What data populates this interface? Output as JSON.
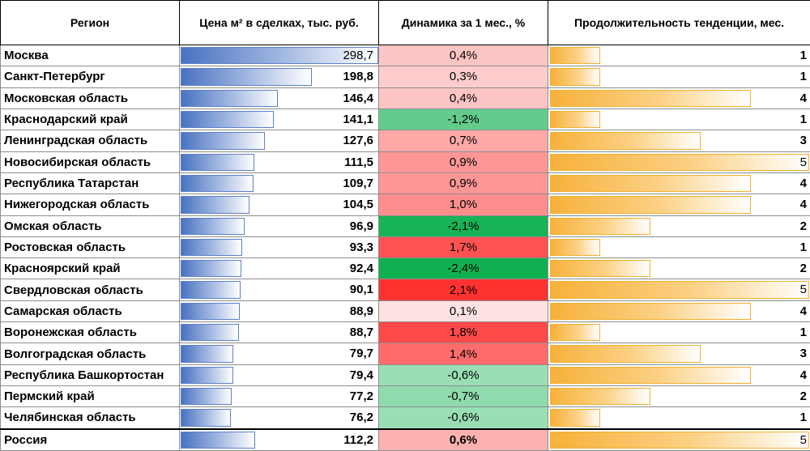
{
  "headers": {
    "region": "Регион",
    "price": "Цена м² в сделках, тыс. руб.",
    "dynamics": "Динамика за 1 мес., %",
    "duration": "Продолжительность тенденции, мес."
  },
  "colors": {
    "price_bar": "#4a72c0",
    "duration_bar": "#f7b13a",
    "positive_max": "#ff2a2a",
    "negative_max": "#10b050"
  },
  "chart_data": {
    "type": "table",
    "columns": [
      "Регион",
      "Цена м² в сделках, тыс. руб.",
      "Динамика за 1 мес., %",
      "Продолжительность тенденции, мес."
    ],
    "rows": [
      {
        "region": "Москва",
        "price": 298.7,
        "price_label": "298,7",
        "dyn": 0.4,
        "dyn_label": "0,4%",
        "dur": 1
      },
      {
        "region": "Санкт-Петербург",
        "price": 198.8,
        "price_label": "198,8",
        "dyn": 0.3,
        "dyn_label": "0,3%",
        "dur": 1
      },
      {
        "region": "Московская область",
        "price": 146.4,
        "price_label": "146,4",
        "dyn": 0.4,
        "dyn_label": "0,4%",
        "dur": 4
      },
      {
        "region": "Краснодарский край",
        "price": 141.1,
        "price_label": "141,1",
        "dyn": -1.2,
        "dyn_label": "-1,2%",
        "dur": 1
      },
      {
        "region": "Ленинградская область",
        "price": 127.6,
        "price_label": "127,6",
        "dyn": 0.7,
        "dyn_label": "0,7%",
        "dur": 3
      },
      {
        "region": "Новосибирская область",
        "price": 111.5,
        "price_label": "111,5",
        "dyn": 0.9,
        "dyn_label": "0,9%",
        "dur": 5
      },
      {
        "region": "Республика Татарстан",
        "price": 109.7,
        "price_label": "109,7",
        "dyn": 0.9,
        "dyn_label": "0,9%",
        "dur": 4
      },
      {
        "region": "Нижегородская область",
        "price": 104.5,
        "price_label": "104,5",
        "dyn": 1.0,
        "dyn_label": "1,0%",
        "dur": 4
      },
      {
        "region": "Омская область",
        "price": 96.9,
        "price_label": "96,9",
        "dyn": -2.1,
        "dyn_label": "-2,1%",
        "dur": 2
      },
      {
        "region": "Ростовская область",
        "price": 93.3,
        "price_label": "93,3",
        "dyn": 1.7,
        "dyn_label": "1,7%",
        "dur": 1
      },
      {
        "region": "Красноярский край",
        "price": 92.4,
        "price_label": "92,4",
        "dyn": -2.4,
        "dyn_label": "-2,4%",
        "dur": 2
      },
      {
        "region": "Свердловская область",
        "price": 90.1,
        "price_label": "90,1",
        "dyn": 2.1,
        "dyn_label": "2,1%",
        "dur": 5
      },
      {
        "region": "Самарская область",
        "price": 88.9,
        "price_label": "88,9",
        "dyn": 0.1,
        "dyn_label": "0,1%",
        "dur": 4
      },
      {
        "region": "Воронежская область",
        "price": 88.7,
        "price_label": "88,7",
        "dyn": 1.8,
        "dyn_label": "1,8%",
        "dur": 1
      },
      {
        "region": "Волгоградская область",
        "price": 79.7,
        "price_label": "79,7",
        "dyn": 1.4,
        "dyn_label": "1,4%",
        "dur": 3
      },
      {
        "region": "Республика Башкортостан",
        "price": 79.4,
        "price_label": "79,4",
        "dyn": -0.6,
        "dyn_label": "-0,6%",
        "dur": 4
      },
      {
        "region": "Пермский край",
        "price": 77.2,
        "price_label": "77,2",
        "dyn": -0.7,
        "dyn_label": "-0,7%",
        "dur": 2
      },
      {
        "region": "Челябинская область",
        "price": 76.2,
        "price_label": "76,2",
        "dyn": -0.6,
        "dyn_label": "-0,6%",
        "dur": 1
      }
    ],
    "total": {
      "region": "Россия",
      "price": 112.2,
      "price_label": "112,2",
      "dyn": 0.6,
      "dyn_label": "0,6%",
      "dur": 5
    },
    "price_max": 298.7,
    "dur_max": 5
  }
}
